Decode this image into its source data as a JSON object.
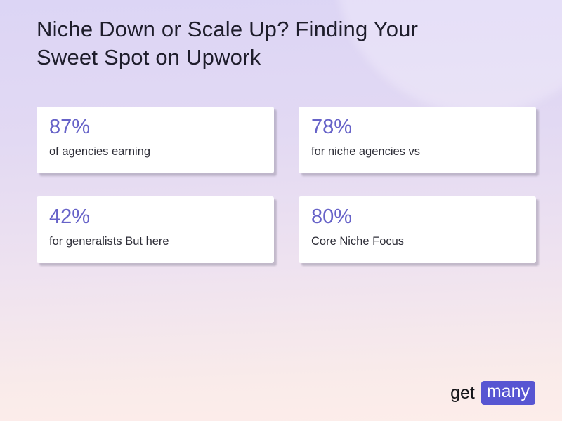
{
  "title": "Niche Down or Scale Up? Finding Your Sweet Spot on Upwork",
  "stats": [
    {
      "value": "87%",
      "label": "of agencies earning"
    },
    {
      "value": "78%",
      "label": "for niche agencies vs"
    },
    {
      "value": "42%",
      "label": "for generalists But here"
    },
    {
      "value": "80%",
      "label": "Core Niche Focus"
    }
  ],
  "logo": {
    "prefix": "get",
    "badge": "many"
  },
  "colors": {
    "accent_value_text": "#6662c8",
    "logo_badge_bg": "#5755d2",
    "logo_badge_text": "#ffffff",
    "title_text": "#1e1d2b",
    "label_text": "#2d2d37",
    "card_bg": "#ffffff",
    "background_top": "#dcd5f5",
    "background_bottom": "#fdedea"
  }
}
